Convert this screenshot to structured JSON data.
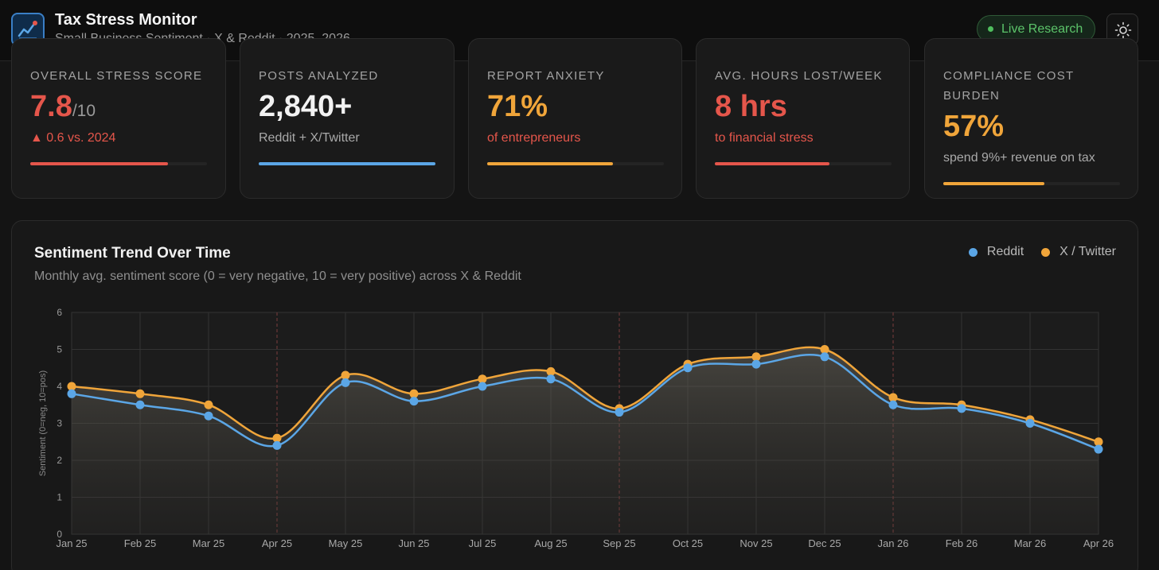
{
  "header": {
    "title": "Tax Stress Monitor",
    "subtitle": "Small Business Sentiment · X & Reddit · 2025–2026",
    "badge": "Live Research",
    "logo_icon": "trend-chart-icon",
    "theme_icon": "sun-icon"
  },
  "kpis": [
    {
      "label": "Overall Stress Score",
      "value": "7.8",
      "unit": "/10",
      "note": "▲ 0.6 vs. 2024",
      "value_color": "#e5564b",
      "note_color": "#e5564b",
      "bar_color": "#e5564b",
      "bar_fraction": 0.78
    },
    {
      "label": "Posts Analyzed",
      "value": "2,840+",
      "unit": "",
      "note": "Reddit + X/Twitter",
      "value_color": "#f2f2f2",
      "note_color": "#a9a9a9",
      "bar_color": "#5ba6e6",
      "bar_fraction": 1.0
    },
    {
      "label": "Report Anxiety",
      "value": "71%",
      "unit": "",
      "note": "of entrepreneurs",
      "value_color": "#f0a53a",
      "note_color": "#e5564b",
      "bar_color": "#f0a53a",
      "bar_fraction": 0.71
    },
    {
      "label": "Avg. Hours Lost/Week",
      "value": "8 hrs",
      "unit": "",
      "note": "to financial stress",
      "value_color": "#e5564b",
      "note_color": "#e5564b",
      "bar_color": "#e5564b",
      "bar_fraction": 0.65
    },
    {
      "label": "Compliance Cost Burden",
      "value": "57%",
      "unit": "",
      "note": "spend 9%+ revenue on tax",
      "value_color": "#f0a53a",
      "note_color": "#a9a9a9",
      "bar_color": "#f0a53a",
      "bar_fraction": 0.57
    }
  ],
  "chart_panel": {
    "title": "Sentiment Trend Over Time",
    "subtitle": "Monthly avg. sentiment score (0 = very negative, 10 = very positive) across X & Reddit"
  },
  "chart_data": {
    "type": "line",
    "title": "Sentiment Trend Over Time",
    "xlabel": "",
    "ylabel": "Sentiment (0=neg, 10=pos)",
    "ylim": [
      0,
      6
    ],
    "yticks": [
      "0",
      "1",
      "2",
      "3",
      "4",
      "5",
      "6"
    ],
    "grid": true,
    "legend": "top-right",
    "categories": [
      "Jan 25",
      "Feb 25",
      "Mar 25",
      "Apr 25",
      "May 25",
      "Jun 25",
      "Jul 25",
      "Aug 25",
      "Sep 25",
      "Oct 25",
      "Nov 25",
      "Dec 25",
      "Jan 26",
      "Feb 26",
      "Mar 26",
      "Apr 26"
    ],
    "event_markers": [
      "Apr 25",
      "Sep 25",
      "Jan 26"
    ],
    "series": [
      {
        "name": "Reddit",
        "color": "#5ba6e6",
        "values": [
          3.8,
          3.5,
          3.2,
          2.4,
          4.1,
          3.6,
          4.0,
          4.2,
          3.3,
          4.5,
          4.6,
          4.8,
          3.5,
          3.4,
          3.0,
          2.3
        ]
      },
      {
        "name": "X / Twitter",
        "color": "#f0a53a",
        "values": [
          4.0,
          3.8,
          3.5,
          2.6,
          4.3,
          3.8,
          4.2,
          4.4,
          3.4,
          4.6,
          4.8,
          5.0,
          3.7,
          3.5,
          3.1,
          2.5
        ]
      }
    ]
  }
}
